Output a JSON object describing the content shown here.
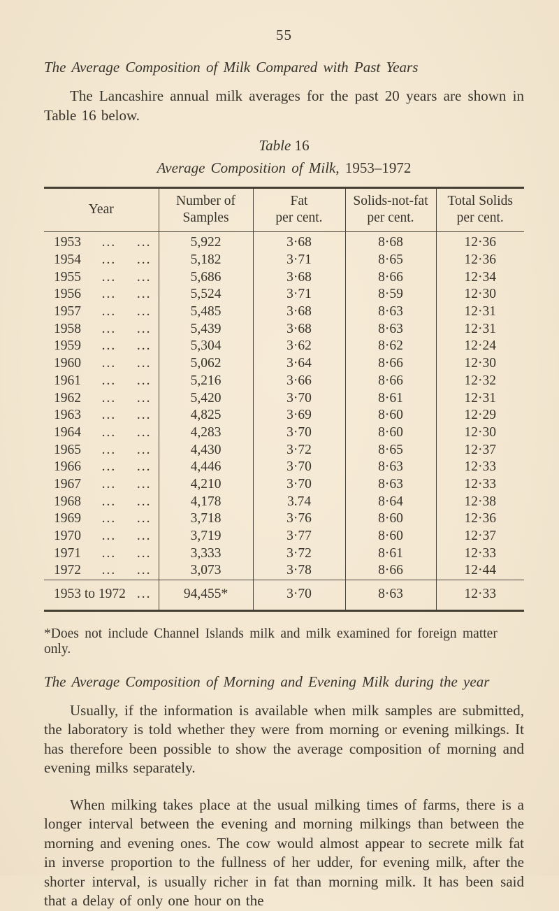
{
  "page": {
    "number": "55"
  },
  "section_past_years": {
    "heading": "The Average Composition of Milk Compared with Past Years",
    "paragraph": "The Lancashire annual milk averages for the past 20 years are shown in Table 16 below."
  },
  "table": {
    "caption_word": "Table",
    "caption_number": "16",
    "title_italic": "Average Composition of Milk",
    "title_suffix": ", 1953–1972",
    "columns": {
      "year": "Year",
      "samples": [
        "Number of",
        "Samples"
      ],
      "fat": [
        "Fat",
        "per cent."
      ],
      "snf": [
        "Solids-not-fat",
        "per cent."
      ],
      "total": [
        "Total Solids",
        "per cent."
      ]
    },
    "dots": "...",
    "rows": [
      {
        "year": "1953",
        "samples": "5,922",
        "fat": "3·68",
        "snf": "8·68",
        "total": "12·36"
      },
      {
        "year": "1954",
        "samples": "5,182",
        "fat": "3·71",
        "snf": "8·65",
        "total": "12·36"
      },
      {
        "year": "1955",
        "samples": "5,686",
        "fat": "3·68",
        "snf": "8·66",
        "total": "12·34"
      },
      {
        "year": "1956",
        "samples": "5,524",
        "fat": "3·71",
        "snf": "8·59",
        "total": "12·30"
      },
      {
        "year": "1957",
        "samples": "5,485",
        "fat": "3·68",
        "snf": "8·63",
        "total": "12·31"
      },
      {
        "year": "1958",
        "samples": "5,439",
        "fat": "3·68",
        "snf": "8·63",
        "total": "12·31"
      },
      {
        "year": "1959",
        "samples": "5,304",
        "fat": "3·62",
        "snf": "8·62",
        "total": "12·24"
      },
      {
        "year": "1960",
        "samples": "5,062",
        "fat": "3·64",
        "snf": "8·66",
        "total": "12·30"
      },
      {
        "year": "1961",
        "samples": "5,216",
        "fat": "3·66",
        "snf": "8·66",
        "total": "12·32"
      },
      {
        "year": "1962",
        "samples": "5,420",
        "fat": "3·70",
        "snf": "8·61",
        "total": "12·31"
      },
      {
        "year": "1963",
        "samples": "4,825",
        "fat": "3·69",
        "snf": "8·60",
        "total": "12·29"
      },
      {
        "year": "1964",
        "samples": "4,283",
        "fat": "3·70",
        "snf": "8·60",
        "total": "12·30"
      },
      {
        "year": "1965",
        "samples": "4,430",
        "fat": "3·72",
        "snf": "8·65",
        "total": "12·37"
      },
      {
        "year": "1966",
        "samples": "4,446",
        "fat": "3·70",
        "snf": "8·63",
        "total": "12·33"
      },
      {
        "year": "1967",
        "samples": "4,210",
        "fat": "3·70",
        "snf": "8·63",
        "total": "12·33"
      },
      {
        "year": "1968",
        "samples": "4,178",
        "fat": "3.74",
        "snf": "8·64",
        "total": "12·38"
      },
      {
        "year": "1969",
        "samples": "3,718",
        "fat": "3·76",
        "snf": "8·60",
        "total": "12·36"
      },
      {
        "year": "1970",
        "samples": "3,719",
        "fat": "3·77",
        "snf": "8·60",
        "total": "12·37"
      },
      {
        "year": "1971",
        "samples": "3,333",
        "fat": "3·72",
        "snf": "8·61",
        "total": "12·33"
      },
      {
        "year": "1972",
        "samples": "3,073",
        "fat": "3·78",
        "snf": "8·66",
        "total": "12·44"
      }
    ],
    "total_row": {
      "year": "1953 to 1972",
      "samples": "94,455*",
      "fat": "3·70",
      "snf": "8·63",
      "total": "12·33"
    },
    "footnote": "*Does not include Channel Islands milk and milk examined for foreign matter only."
  },
  "section_morning_evening": {
    "heading": "The Average Composition of Morning and Evening Milk during the year",
    "paragraph1": "Usually, if the information is available when milk samples are submitted, the laboratory is told whether they were from morning or evening milkings. It has therefore been possible to show the average composition of morning and evening milks separately.",
    "paragraph2": "When milking takes place at the usual milking times of farms, there is a longer interval between the evening and morning milkings than between the morning and evening ones. The cow would almost appear to secrete milk fat in inverse proportion to the fullness of her udder, for evening milk, after the shorter interval, is usually richer in fat than morning milk. It has been said that a delay of only one hour on the"
  },
  "colors": {
    "paper": "#f3e7d1",
    "ink": "#38332b",
    "rule": "#443e33"
  }
}
